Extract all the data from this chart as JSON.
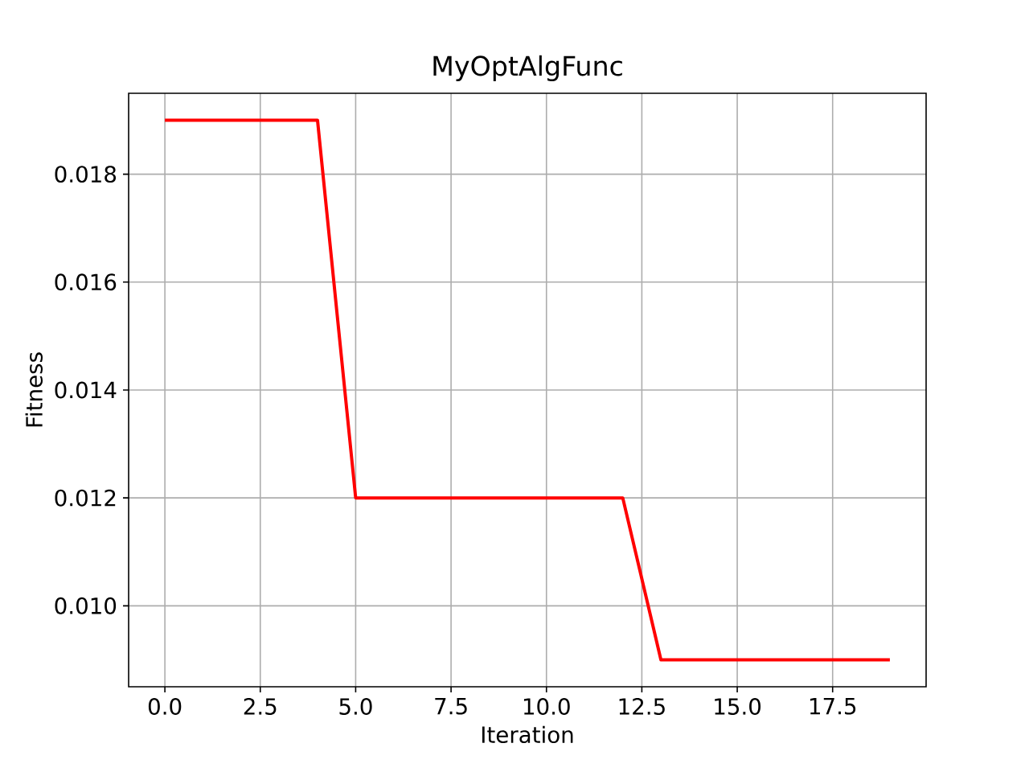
{
  "chart_data": {
    "type": "line",
    "title": "MyOptAlgFunc",
    "xlabel": "Iteration",
    "ylabel": "Fitness",
    "x": [
      0,
      1,
      2,
      3,
      4,
      5,
      6,
      7,
      8,
      9,
      10,
      11,
      12,
      13,
      14,
      15,
      16,
      17,
      18,
      19
    ],
    "series": [
      {
        "color": "#ff0000",
        "values": [
          0.019,
          0.019,
          0.019,
          0.019,
          0.019,
          0.012,
          0.012,
          0.012,
          0.012,
          0.012,
          0.012,
          0.012,
          0.012,
          0.009,
          0.009,
          0.009,
          0.009,
          0.009,
          0.009,
          0.009
        ]
      }
    ],
    "xlim": [
      -0.95,
      19.95
    ],
    "ylim": [
      0.0085,
      0.0195
    ],
    "xticks": [
      {
        "value": 0,
        "label": "0.0"
      },
      {
        "value": 2.5,
        "label": "2.5"
      },
      {
        "value": 5,
        "label": "5.0"
      },
      {
        "value": 7.5,
        "label": "7.5"
      },
      {
        "value": 10,
        "label": "10.0"
      },
      {
        "value": 12.5,
        "label": "12.5"
      },
      {
        "value": 15,
        "label": "15.0"
      },
      {
        "value": 17.5,
        "label": "17.5"
      }
    ],
    "yticks": [
      {
        "value": 0.01,
        "label": "0.010"
      },
      {
        "value": 0.012,
        "label": "0.012"
      },
      {
        "value": 0.014,
        "label": "0.014"
      },
      {
        "value": 0.016,
        "label": "0.016"
      },
      {
        "value": 0.018,
        "label": "0.018"
      }
    ],
    "grid": true,
    "marker": "none",
    "line_style": "solid"
  }
}
